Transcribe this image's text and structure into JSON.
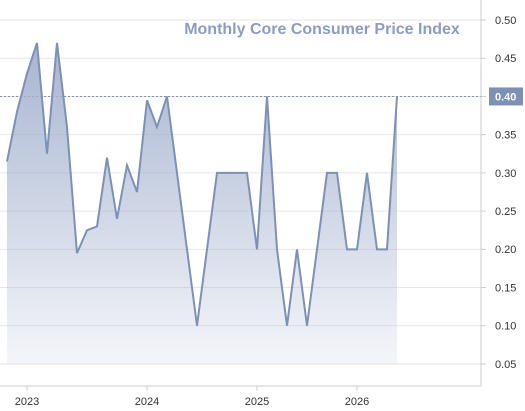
{
  "chart_data": {
    "type": "area",
    "title": "Monthly Core Consumer Price Index",
    "categories": [
      null,
      null,
      "2023",
      null,
      null,
      null,
      null,
      null,
      null,
      null,
      null,
      null,
      null,
      null,
      "2024",
      null,
      null,
      null,
      null,
      null,
      null,
      null,
      null,
      null,
      null,
      "2025",
      null,
      null,
      null,
      null,
      null,
      null,
      null,
      null,
      null,
      "2026",
      null,
      null,
      null,
      null
    ],
    "values": [
      0.315,
      0.38,
      0.43,
      0.47,
      0.325,
      0.47,
      0.36,
      0.195,
      0.225,
      0.23,
      0.32,
      0.24,
      0.31,
      0.275,
      0.395,
      0.36,
      0.4,
      0.3,
      0.2,
      0.1,
      0.2,
      0.3,
      0.3,
      0.3,
      0.3,
      0.2,
      0.4,
      0.2,
      0.1,
      0.2,
      0.1,
      0.2,
      0.3,
      0.3,
      0.2,
      0.2,
      0.3,
      0.2,
      0.2,
      0.4
    ],
    "color": "#7d90b6",
    "ylim": [
      0.02,
      0.52
    ],
    "yticks": [
      {
        "value": 0.05,
        "label": "0.05"
      },
      {
        "value": 0.1,
        "label": "0.10"
      },
      {
        "value": 0.15,
        "label": "0.15"
      },
      {
        "value": 0.2,
        "label": "0.20"
      },
      {
        "value": 0.25,
        "label": "0.25"
      },
      {
        "value": 0.3,
        "label": "0.30"
      },
      {
        "value": 0.35,
        "label": "0.35"
      },
      {
        "value": 0.4,
        "label": "0.40"
      },
      {
        "value": 0.45,
        "label": "0.45"
      },
      {
        "value": 0.5,
        "label": "0.50"
      }
    ],
    "grid": true
  }
}
